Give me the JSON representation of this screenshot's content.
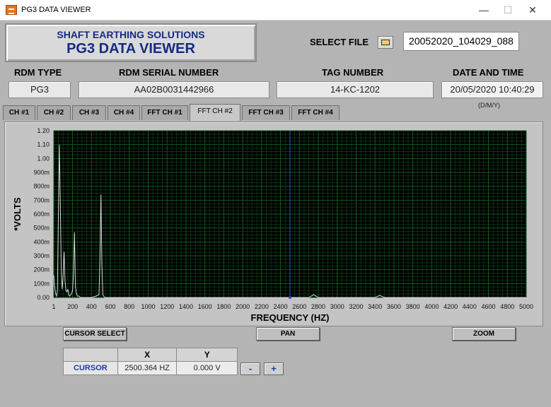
{
  "window": {
    "title": "PG3 DATA VIEWER",
    "minimize": "—",
    "maximize": "☐",
    "close": "✕"
  },
  "banner": {
    "line1": "SHAFT EARTHING SOLUTIONS",
    "line2": "PG3 DATA VIEWER"
  },
  "select_file": {
    "label": "SELECT FILE",
    "icon": "folder-open-icon",
    "value": "20052020_104029_088"
  },
  "fields": {
    "rdm_type": {
      "label": "RDM TYPE",
      "value": "PG3"
    },
    "rdm_serial": {
      "label": "RDM SERIAL NUMBER",
      "value": "AA02B0031442966"
    },
    "tag_number": {
      "label": "TAG NUMBER",
      "value": "14-KC-1202"
    },
    "date_time": {
      "label": "DATE AND TIME",
      "value": "20/05/2020 10:40:29",
      "format": "(D/M/Y)"
    }
  },
  "tabs": [
    {
      "label": "CH #1",
      "active": false
    },
    {
      "label": "CH #2",
      "active": false
    },
    {
      "label": "CH #3",
      "active": false
    },
    {
      "label": "CH #4",
      "active": false
    },
    {
      "label": "FFT CH #1",
      "active": false
    },
    {
      "label": "FFT CH #2",
      "active": true
    },
    {
      "label": "FFT CH #3",
      "active": false
    },
    {
      "label": "FFT CH #4",
      "active": false
    }
  ],
  "chart_data": {
    "type": "line",
    "xlabel": "FREQUENCY (HZ)",
    "ylabel": "*VOLTS",
    "xlim": [
      1,
      5000
    ],
    "ylim": [
      0,
      1.2
    ],
    "x_ticks": [
      "1",
      "200",
      "400",
      "600",
      "800",
      "1000",
      "1200",
      "1400",
      "1600",
      "1800",
      "2000",
      "2200",
      "2400",
      "2600",
      "2800",
      "3000",
      "3200",
      "3400",
      "3600",
      "3800",
      "4000",
      "4200",
      "4400",
      "4600",
      "4800",
      "5000"
    ],
    "y_ticks": [
      "0.00",
      "100m",
      "200m",
      "300m",
      "400m",
      "500m",
      "600m",
      "700m",
      "800m",
      "900m",
      "1.00",
      "1.10",
      "1.20"
    ],
    "grid": true,
    "background": "#000000",
    "grid_color": "#0f5a1e",
    "trace_color": "#d8d8d8",
    "cursor_color": "#2a4bd0",
    "cursor_x": 2500.364,
    "series": [
      {
        "x": [
          1,
          10,
          20,
          30,
          40,
          50,
          60,
          70,
          80,
          90,
          100,
          110,
          120,
          130,
          140,
          150,
          160,
          170,
          180,
          190,
          200,
          210,
          220,
          230,
          240,
          250,
          260,
          270,
          280,
          300,
          320,
          350,
          380,
          400,
          450,
          480,
          490,
          500,
          510,
          520,
          540,
          600,
          700,
          900,
          1200,
          1500,
          2000,
          2400,
          2500,
          2600,
          2700,
          2750,
          2800,
          3000,
          3300,
          3400,
          3450,
          3500,
          3800,
          4200,
          4600,
          5000
        ],
        "y": [
          0.16,
          0.08,
          0.03,
          0.01,
          0.05,
          0.58,
          1.1,
          0.7,
          0.2,
          0.06,
          0.15,
          0.33,
          0.12,
          0.05,
          0.04,
          0.06,
          0.02,
          0.01,
          0.02,
          0.03,
          0.05,
          0.18,
          0.47,
          0.08,
          0.03,
          0.01,
          0.01,
          0.01,
          0.0,
          0.0,
          0.0,
          0.0,
          0.0,
          0.0,
          0.01,
          0.02,
          0.3,
          0.74,
          0.25,
          0.02,
          0.0,
          0.0,
          0.0,
          0.0,
          0.0,
          0.0,
          0.0,
          0.0,
          0.0,
          0.0,
          0.0,
          0.02,
          0.0,
          0.0,
          0.0,
          0.0,
          0.015,
          0.0,
          0.0,
          0.0,
          0.0,
          0.0
        ]
      }
    ]
  },
  "buttons": {
    "cursor_select": "CURSOR SELECT",
    "pan": "PAN",
    "zoom": "ZOOM",
    "minus": "-",
    "plus": "+"
  },
  "cursor_table": {
    "headers": [
      "",
      "X",
      "Y"
    ],
    "row": {
      "name": "CURSOR",
      "x": "2500.364 HZ",
      "y": "0.000 V"
    }
  }
}
